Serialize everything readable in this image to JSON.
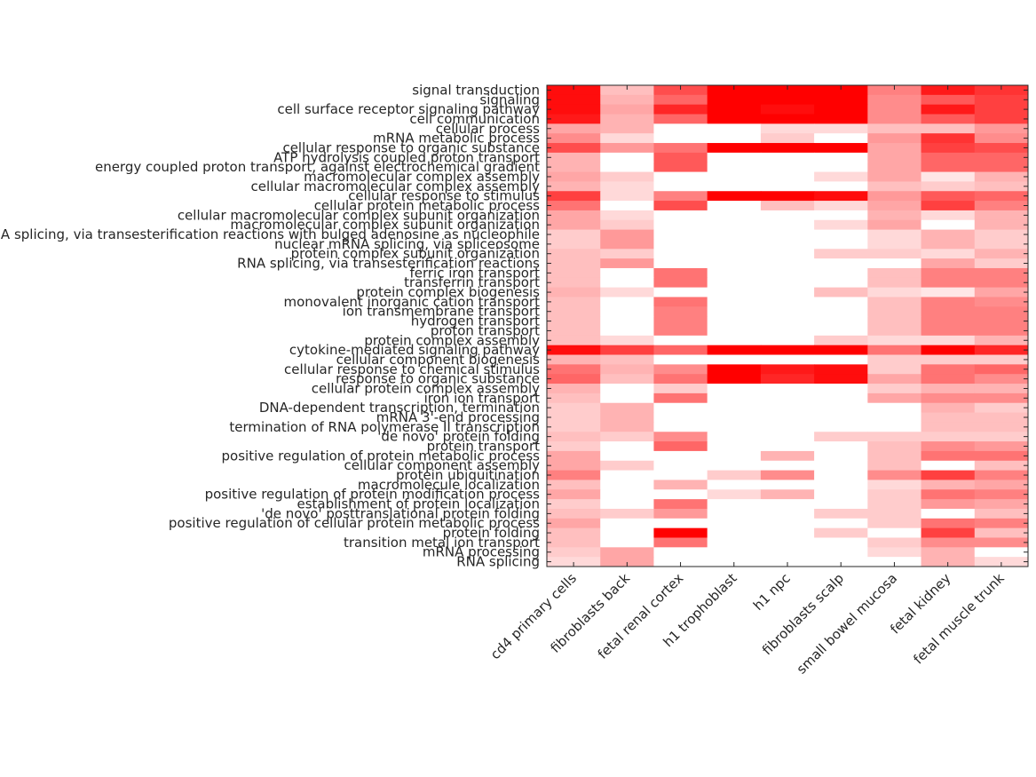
{
  "chart_data": {
    "type": "heatmap",
    "title": "",
    "xlabel": "",
    "ylabel": "",
    "colormap": {
      "low": "#ffffff",
      "high": "#ff0000"
    },
    "value_range": [
      0,
      1
    ],
    "grid": false,
    "columns": [
      "cd4 primary cells",
      "fibroblasts back",
      "fetal renal cortex",
      "h1 trophoblast",
      "h1 npc",
      "fibroblasts scalp",
      "small bowel mucosa",
      "fetal kidney",
      "fetal muscle trunk"
    ],
    "rows": [
      "signal transduction",
      "signaling",
      "cell surface receptor signaling pathway",
      "cell communication",
      "cellular process",
      "mRNA metabolic process",
      "cellular response to organic substance",
      "ATP hydrolysis coupled proton transport",
      "energy coupled proton transport, against electrochemical gradient",
      "macromolecular complex assembly",
      "cellular macromolecular complex assembly",
      "cellular response to stimulus",
      "cellular protein metabolic process",
      "cellular macromolecular complex subunit organization",
      "macromolecular complex subunit organization",
      "RNA splicing, via transesterification reactions with bulged adenosine as nucleophile",
      "nuclear mRNA splicing, via spliceosome",
      "protein complex subunit organization",
      "RNA splicing, via transesterification reactions",
      "ferric iron transport",
      "transferrin transport",
      "protein complex biogenesis",
      "monovalent inorganic cation transport",
      "ion transmembrane transport",
      "hydrogen transport",
      "proton transport",
      "protein complex assembly",
      "cytokine-mediated signaling pathway",
      "cellular component biogenesis",
      "cellular response to chemical stimulus",
      "response to organic substance",
      "cellular protein complex assembly",
      "iron ion transport",
      "DNA-dependent transcription, termination",
      "mRNA 3'-end processing",
      "termination of RNA polymerase II transcription",
      "'de novo' protein folding",
      "protein transport",
      "positive regulation of protein metabolic process",
      "cellular component assembly",
      "protein ubiquitination",
      "macromolecule localization",
      "positive regulation of protein modification process",
      "establishment of protein localization",
      "'de novo' posttranslational protein folding",
      "positive regulation of cellular protein metabolic process",
      "protein folding",
      "transition metal ion transport",
      "mRNA processing",
      "RNA splicing"
    ],
    "values": [
      [
        0.95,
        0.25,
        0.7,
        1.0,
        1.0,
        1.0,
        0.5,
        0.9,
        0.8
      ],
      [
        0.95,
        0.3,
        0.6,
        1.0,
        1.0,
        1.0,
        0.45,
        0.65,
        0.75
      ],
      [
        0.95,
        0.35,
        0.85,
        1.0,
        0.95,
        1.0,
        0.45,
        0.9,
        0.75
      ],
      [
        0.9,
        0.3,
        0.6,
        1.0,
        1.0,
        1.0,
        0.45,
        0.65,
        0.75
      ],
      [
        0.35,
        0.3,
        0.0,
        0.0,
        0.15,
        0.15,
        0.25,
        0.25,
        0.4
      ],
      [
        0.45,
        0.15,
        0.0,
        0.0,
        0.2,
        0.0,
        0.4,
        0.8,
        0.45
      ],
      [
        0.7,
        0.4,
        0.55,
        1.0,
        1.0,
        1.0,
        0.35,
        0.75,
        0.7
      ],
      [
        0.3,
        0.0,
        0.65,
        0.0,
        0.0,
        0.0,
        0.35,
        0.6,
        0.6
      ],
      [
        0.3,
        0.0,
        0.65,
        0.0,
        0.0,
        0.0,
        0.35,
        0.6,
        0.6
      ],
      [
        0.35,
        0.2,
        0.0,
        0.0,
        0.0,
        0.15,
        0.35,
        0.1,
        0.3
      ],
      [
        0.3,
        0.15,
        0.0,
        0.0,
        0.0,
        0.0,
        0.25,
        0.2,
        0.25
      ],
      [
        0.75,
        0.15,
        0.5,
        1.0,
        1.0,
        0.95,
        0.4,
        0.65,
        0.6
      ],
      [
        0.55,
        0.0,
        0.7,
        0.0,
        0.25,
        0.15,
        0.35,
        0.75,
        0.5
      ],
      [
        0.35,
        0.15,
        0.0,
        0.0,
        0.0,
        0.0,
        0.3,
        0.15,
        0.3
      ],
      [
        0.35,
        0.2,
        0.0,
        0.0,
        0.0,
        0.15,
        0.35,
        0.0,
        0.3
      ],
      [
        0.2,
        0.4,
        0.0,
        0.0,
        0.0,
        0.0,
        0.15,
        0.3,
        0.2
      ],
      [
        0.2,
        0.4,
        0.0,
        0.0,
        0.0,
        0.0,
        0.15,
        0.3,
        0.2
      ],
      [
        0.25,
        0.2,
        0.0,
        0.0,
        0.0,
        0.2,
        0.2,
        0.15,
        0.3
      ],
      [
        0.25,
        0.4,
        0.0,
        0.0,
        0.0,
        0.0,
        0.0,
        0.35,
        0.2
      ],
      [
        0.25,
        0.0,
        0.55,
        0.0,
        0.0,
        0.0,
        0.25,
        0.5,
        0.5
      ],
      [
        0.25,
        0.0,
        0.55,
        0.0,
        0.0,
        0.0,
        0.25,
        0.5,
        0.5
      ],
      [
        0.3,
        0.15,
        0.0,
        0.0,
        0.0,
        0.25,
        0.15,
        0.1,
        0.35
      ],
      [
        0.25,
        0.0,
        0.55,
        0.0,
        0.0,
        0.0,
        0.25,
        0.5,
        0.45
      ],
      [
        0.25,
        0.0,
        0.5,
        0.0,
        0.0,
        0.0,
        0.25,
        0.5,
        0.5
      ],
      [
        0.25,
        0.0,
        0.5,
        0.0,
        0.0,
        0.0,
        0.25,
        0.5,
        0.5
      ],
      [
        0.25,
        0.0,
        0.5,
        0.0,
        0.0,
        0.0,
        0.25,
        0.5,
        0.5
      ],
      [
        0.25,
        0.15,
        0.0,
        0.0,
        0.0,
        0.2,
        0.15,
        0.15,
        0.3
      ],
      [
        0.95,
        0.75,
        0.6,
        1.0,
        1.0,
        1.0,
        0.55,
        1.0,
        0.85
      ],
      [
        0.3,
        0.25,
        0.0,
        0.0,
        0.0,
        0.0,
        0.2,
        0.2,
        0.2
      ],
      [
        0.55,
        0.3,
        0.45,
        1.0,
        0.9,
        0.95,
        0.2,
        0.55,
        0.6
      ],
      [
        0.6,
        0.25,
        0.55,
        1.0,
        0.85,
        0.95,
        0.35,
        0.55,
        0.45
      ],
      [
        0.3,
        0.0,
        0.2,
        0.0,
        0.0,
        0.0,
        0.2,
        0.3,
        0.3
      ],
      [
        0.25,
        0.0,
        0.55,
        0.0,
        0.0,
        0.0,
        0.35,
        0.45,
        0.45
      ],
      [
        0.2,
        0.3,
        0.0,
        0.0,
        0.0,
        0.0,
        0.0,
        0.3,
        0.2
      ],
      [
        0.2,
        0.3,
        0.0,
        0.0,
        0.0,
        0.0,
        0.0,
        0.25,
        0.25
      ],
      [
        0.2,
        0.3,
        0.0,
        0.0,
        0.0,
        0.0,
        0.0,
        0.25,
        0.25
      ],
      [
        0.25,
        0.2,
        0.45,
        0.0,
        0.0,
        0.2,
        0.2,
        0.2,
        0.2
      ],
      [
        0.2,
        0.0,
        0.6,
        0.0,
        0.0,
        0.0,
        0.25,
        0.45,
        0.4
      ],
      [
        0.35,
        0.0,
        0.0,
        0.0,
        0.3,
        0.0,
        0.25,
        0.55,
        0.55
      ],
      [
        0.35,
        0.2,
        0.0,
        0.0,
        0.0,
        0.0,
        0.25,
        0.0,
        0.25
      ],
      [
        0.5,
        0.0,
        0.0,
        0.2,
        0.45,
        0.0,
        0.45,
        0.75,
        0.5
      ],
      [
        0.25,
        0.0,
        0.3,
        0.0,
        0.0,
        0.0,
        0.15,
        0.3,
        0.35
      ],
      [
        0.35,
        0.0,
        0.0,
        0.15,
        0.3,
        0.0,
        0.2,
        0.55,
        0.5
      ],
      [
        0.2,
        0.0,
        0.55,
        0.0,
        0.0,
        0.0,
        0.2,
        0.4,
        0.35
      ],
      [
        0.25,
        0.2,
        0.4,
        0.0,
        0.0,
        0.2,
        0.2,
        0.0,
        0.25
      ],
      [
        0.35,
        0.0,
        0.0,
        0.0,
        0.0,
        0.0,
        0.2,
        0.55,
        0.5
      ],
      [
        0.25,
        0.0,
        1.0,
        0.0,
        0.0,
        0.2,
        0.0,
        0.75,
        0.25
      ],
      [
        0.25,
        0.0,
        0.55,
        0.0,
        0.0,
        0.0,
        0.2,
        0.45,
        0.45
      ],
      [
        0.2,
        0.35,
        0.0,
        0.0,
        0.0,
        0.0,
        0.15,
        0.3,
        0.0
      ],
      [
        0.15,
        0.35,
        0.0,
        0.0,
        0.0,
        0.0,
        0.0,
        0.3,
        0.15
      ]
    ]
  }
}
